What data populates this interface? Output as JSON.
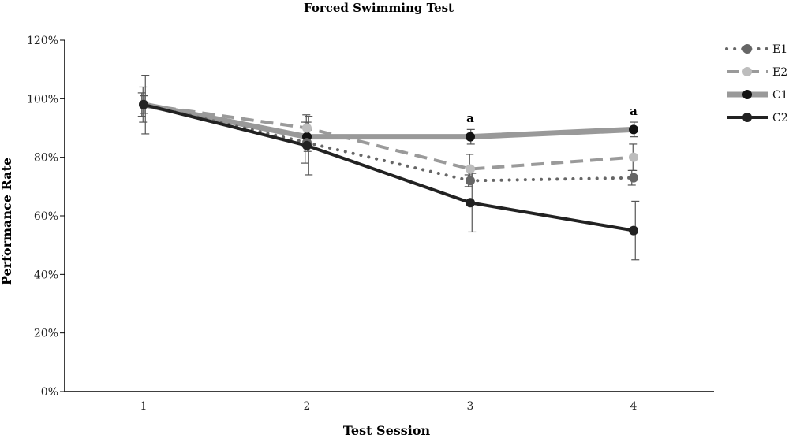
{
  "chart_data": {
    "type": "line",
    "title": "Forced Swimming Test",
    "xlabel": "Test Session",
    "ylabel": "Performance Rate",
    "categories": [
      "1",
      "2",
      "3",
      "4"
    ],
    "ylim": [
      0,
      120
    ],
    "yticks": [
      0,
      20,
      40,
      60,
      80,
      100,
      120
    ],
    "ytick_labels": [
      "0%",
      "20%",
      "40%",
      "60%",
      "80%",
      "100%",
      "120%"
    ],
    "grid": false,
    "legend_position": "top-right",
    "series": [
      {
        "name": "E1",
        "values": [
          98,
          85,
          72,
          73
        ],
        "errors": [
          4,
          7,
          2,
          2.5
        ],
        "color": "#666666",
        "style": "dotted"
      },
      {
        "name": "E2",
        "values": [
          98,
          90,
          76,
          80
        ],
        "errors": [
          6,
          4.5,
          5,
          4.5
        ],
        "color": "#9a9a9a",
        "style": "dashed",
        "marker_color": "#bdbdbd"
      },
      {
        "name": "C1",
        "values": [
          98,
          87,
          87,
          89.5
        ],
        "errors": [
          3,
          5,
          2.5,
          2.5
        ],
        "color": "#999999",
        "style": "solid-thick",
        "marker_color": "#111111"
      },
      {
        "name": "C2",
        "values": [
          98,
          84,
          64.5,
          55
        ],
        "errors": [
          10,
          10,
          10,
          10
        ],
        "color": "#222222",
        "style": "solid"
      }
    ],
    "annotations": [
      {
        "x": "3",
        "text": "a",
        "y": 92
      },
      {
        "x": "4",
        "text": "a",
        "y": 94.5
      }
    ]
  }
}
